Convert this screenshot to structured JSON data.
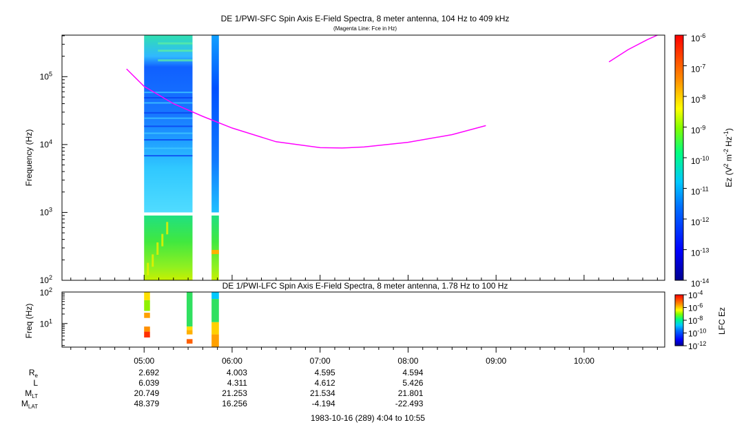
{
  "chart_data": [
    {
      "type": "heatmap",
      "title": "DE 1/PWI-SFC  Spin Axis E-Field Spectra, 8 meter antenna, 104 Hz to 409 kHz",
      "subtitle": "(Magenta Line: Fce in Hz)",
      "ylabel": "Frequency (Hz)",
      "yscale": "log",
      "ylim": [
        100,
        409000
      ],
      "yticks": [
        {
          "base": "10",
          "exp": "2"
        },
        {
          "base": "10",
          "exp": "3"
        },
        {
          "base": "10",
          "exp": "4"
        },
        {
          "base": "10",
          "exp": "5"
        }
      ],
      "xlim": [
        "04:04",
        "10:55"
      ],
      "colorbar": {
        "label_parts": [
          "Ez (V",
          "2",
          " m",
          "-2",
          " Hz",
          "-1",
          ")"
        ],
        "scale": "log",
        "range": [
          1e-14,
          1e-06
        ],
        "ticks": [
          {
            "base": "10",
            "exp": "-6"
          },
          {
            "base": "10",
            "exp": "-7"
          },
          {
            "base": "10",
            "exp": "-8"
          },
          {
            "base": "10",
            "exp": "-9"
          },
          {
            "base": "10",
            "exp": "-10"
          },
          {
            "base": "10",
            "exp": "-11"
          },
          {
            "base": "10",
            "exp": "-12"
          },
          {
            "base": "10",
            "exp": "-13"
          },
          {
            "base": "10",
            "exp": "-14"
          }
        ]
      },
      "data_blocks": [
        {
          "t_start": "05:00",
          "t_end": "05:33"
        },
        {
          "t_start": "05:46",
          "t_end": "05:51"
        }
      ],
      "series": [
        {
          "name": "Fce in Hz",
          "color": "#ff00ff",
          "segments": [
            [
              [
                "04:48",
                130000
              ],
              [
                "05:00",
                72000
              ],
              [
                "05:20",
                40000
              ],
              [
                "05:40",
                26000
              ],
              [
                "06:00",
                17500
              ],
              [
                "06:30",
                11000
              ],
              [
                "07:00",
                9000
              ],
              [
                "07:15",
                8900
              ],
              [
                "07:30",
                9200
              ],
              [
                "08:00",
                10800
              ],
              [
                "08:30",
                14000
              ],
              [
                "08:53",
                19000
              ]
            ],
            [
              [
                "10:17",
                165000
              ],
              [
                "10:30",
                250000
              ],
              [
                "10:43",
                350000
              ],
              [
                "10:50",
                409000
              ]
            ]
          ]
        }
      ]
    },
    {
      "type": "heatmap",
      "title": "DE 1/PWI-LFC  Spin Axis E-Field Spectra, 8 meter antenna, 1.78 Hz to 100 Hz",
      "ylabel": "Freq (Hz)",
      "yscale": "log",
      "ylim": [
        1.78,
        100
      ],
      "yticks": [
        {
          "base": "10",
          "exp": "1"
        },
        {
          "base": "10",
          "exp": "2"
        }
      ],
      "xlim": [
        "04:04",
        "10:55"
      ],
      "colorbar": {
        "label": "LFC Ez",
        "scale": "log",
        "range": [
          1e-12,
          0.0001
        ],
        "ticks": [
          {
            "base": "10",
            "exp": "-4"
          },
          {
            "base": "10",
            "exp": "-6"
          },
          {
            "base": "10",
            "exp": "-8"
          },
          {
            "base": "10",
            "exp": "-10"
          },
          {
            "base": "10",
            "exp": "-12"
          }
        ]
      },
      "data_blocks": [
        {
          "t_start": "05:00",
          "t_end": "05:04"
        },
        {
          "t_start": "05:29",
          "t_end": "05:33"
        },
        {
          "t_start": "05:46",
          "t_end": "05:51"
        }
      ],
      "x_tick_labels": [
        "05:00",
        "06:00",
        "07:00",
        "08:00",
        "09:00",
        "10:00"
      ],
      "ephemeris": {
        "rows": [
          {
            "label": "R",
            "sub": "e",
            "values": [
              "2.692",
              "4.003",
              "4.595",
              "4.594"
            ]
          },
          {
            "label": "L",
            "sub": "",
            "values": [
              "6.039",
              "4.311",
              "4.612",
              "5.426"
            ]
          },
          {
            "label": "M",
            "sub": "LT",
            "values": [
              "20.749",
              "21.253",
              "21.534",
              "21.801"
            ]
          },
          {
            "label": "M",
            "sub": "LAT",
            "values": [
              "48.379",
              "16.256",
              "-4.194",
              "-22.493"
            ]
          }
        ],
        "times": [
          "05:00",
          "06:00",
          "07:00",
          "08:00"
        ]
      },
      "date_label": "1983-10-16 (289) 4:04 to 10:55"
    }
  ]
}
